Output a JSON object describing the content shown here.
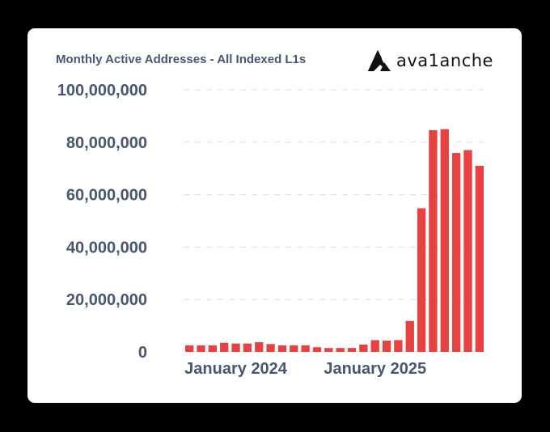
{
  "chart_data": {
    "type": "bar",
    "title": "Monthly Active Addresses - All Indexed L1s",
    "xlabel": "",
    "ylabel": "",
    "ylim": [
      0,
      100000000
    ],
    "yticks": [
      {
        "value": 0,
        "label": "0"
      },
      {
        "value": 20000000,
        "label": "20,000,000"
      },
      {
        "value": 40000000,
        "label": "40,000,000"
      },
      {
        "value": 60000000,
        "label": "60,000,000"
      },
      {
        "value": 80000000,
        "label": "80,000,000"
      },
      {
        "value": 100000000,
        "label": "100,000,000"
      }
    ],
    "xtick_labels": [
      {
        "index": 4,
        "label": "January 2024"
      },
      {
        "index": 16,
        "label": "January 2025"
      }
    ],
    "categories": [
      "2023-09",
      "2023-10",
      "2023-11",
      "2023-12",
      "2024-01",
      "2024-02",
      "2024-03",
      "2024-04",
      "2024-05",
      "2024-06",
      "2024-07",
      "2024-08",
      "2024-09",
      "2024-10",
      "2024-11",
      "2024-12",
      "2025-01",
      "2025-02",
      "2025-03",
      "2025-04",
      "2025-05",
      "2025-06",
      "2025-07",
      "2025-08",
      "2025-09",
      "2025-10"
    ],
    "values": [
      2500000,
      2500000,
      2500000,
      3500000,
      3200000,
      3200000,
      3700000,
      3000000,
      2500000,
      2500000,
      2500000,
      1800000,
      1500000,
      1500000,
      1500000,
      2800000,
      4500000,
      4300000,
      4500000,
      11800000,
      54800000,
      84600000,
      85000000,
      75900000,
      77000000,
      71000000
    ],
    "bar_color": "#e84142",
    "grid": true,
    "grid_style": "dashed-horizontal"
  },
  "brand": {
    "name": "ava1anche",
    "icon": "avalanche-logo-icon"
  }
}
